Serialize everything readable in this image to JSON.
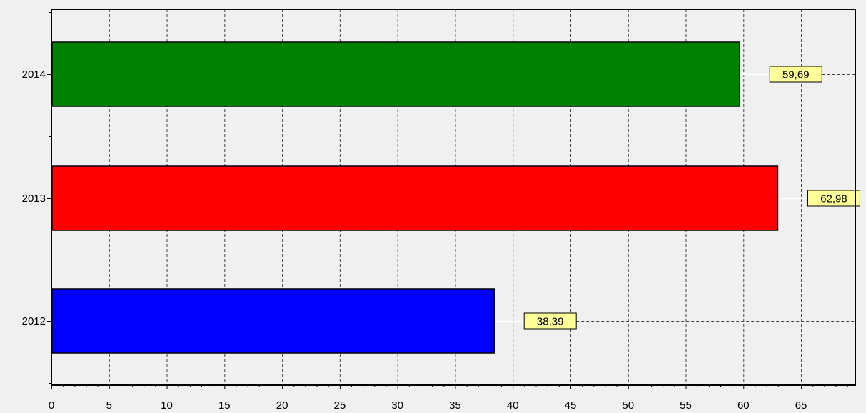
{
  "chart_data": {
    "type": "bar",
    "orientation": "horizontal",
    "categories": [
      "2014",
      "2013",
      "2012"
    ],
    "values": [
      59.69,
      62.98,
      38.39
    ],
    "value_labels": [
      "59,69",
      "62,98",
      "38,39"
    ],
    "bar_colors": [
      "#008000",
      "#ff0000",
      "#0000ff"
    ],
    "xlim": [
      0,
      69.7
    ],
    "x_ticks": [
      0,
      5,
      10,
      15,
      20,
      25,
      30,
      35,
      40,
      45,
      50,
      55,
      60,
      65
    ],
    "x_tick_labels": [
      "0",
      "5",
      "10",
      "15",
      "20",
      "25",
      "30",
      "35",
      "40",
      "45",
      "50",
      "55",
      "60",
      "65"
    ],
    "grid": true,
    "grid_style": "dashed",
    "label_box_color": "#ffff99",
    "plot_background": "#f0f0f0",
    "title": "",
    "xlabel": "",
    "ylabel": ""
  }
}
